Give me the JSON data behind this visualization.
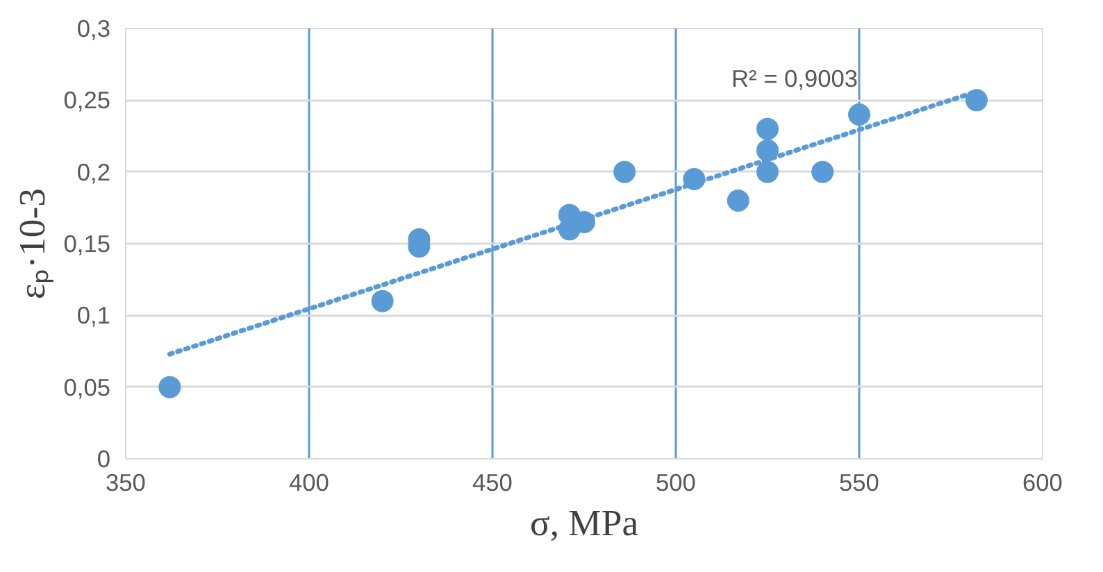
{
  "chart_data": {
    "type": "scatter",
    "xlabel": "σ, MPa",
    "ylabel": "εₚ·10-3",
    "series": [
      {
        "color": "#5b9bd5",
        "marker": "circle",
        "x": [
          362,
          420,
          430,
          430,
          471,
          471,
          475,
          486,
          505,
          517,
          525,
          525,
          525,
          540,
          550,
          582
        ],
        "values": [
          0.05,
          0.11,
          0.153,
          0.148,
          0.17,
          0.16,
          0.165,
          0.2,
          0.195,
          0.18,
          0.23,
          0.215,
          0.2,
          0.2,
          0.24,
          0.25
        ]
      },
      {
        "type": "line",
        "color": "#5b9bd5",
        "line_style": "dotted",
        "x": [
          362,
          582
        ],
        "values": [
          0.073,
          0.256
        ]
      }
    ],
    "annotations": [
      {
        "text": "R² = 0,9003",
        "x": 550,
        "y": 0.24
      }
    ],
    "xlim": [
      350,
      600
    ],
    "xticks": [
      350,
      400,
      450,
      500,
      550,
      600
    ],
    "ylim": [
      0,
      0.3
    ],
    "yticks": [
      {
        "value": 0,
        "label": "0"
      },
      {
        "value": 0.05,
        "label": "0,05"
      },
      {
        "value": 0.1,
        "label": "0,1"
      },
      {
        "value": 0.15,
        "label": "0,15"
      },
      {
        "value": 0.2,
        "label": "0,2"
      },
      {
        "value": 0.25,
        "label": "0,25"
      },
      {
        "value": 0.3,
        "label": "0,3"
      }
    ],
    "grid": true
  }
}
